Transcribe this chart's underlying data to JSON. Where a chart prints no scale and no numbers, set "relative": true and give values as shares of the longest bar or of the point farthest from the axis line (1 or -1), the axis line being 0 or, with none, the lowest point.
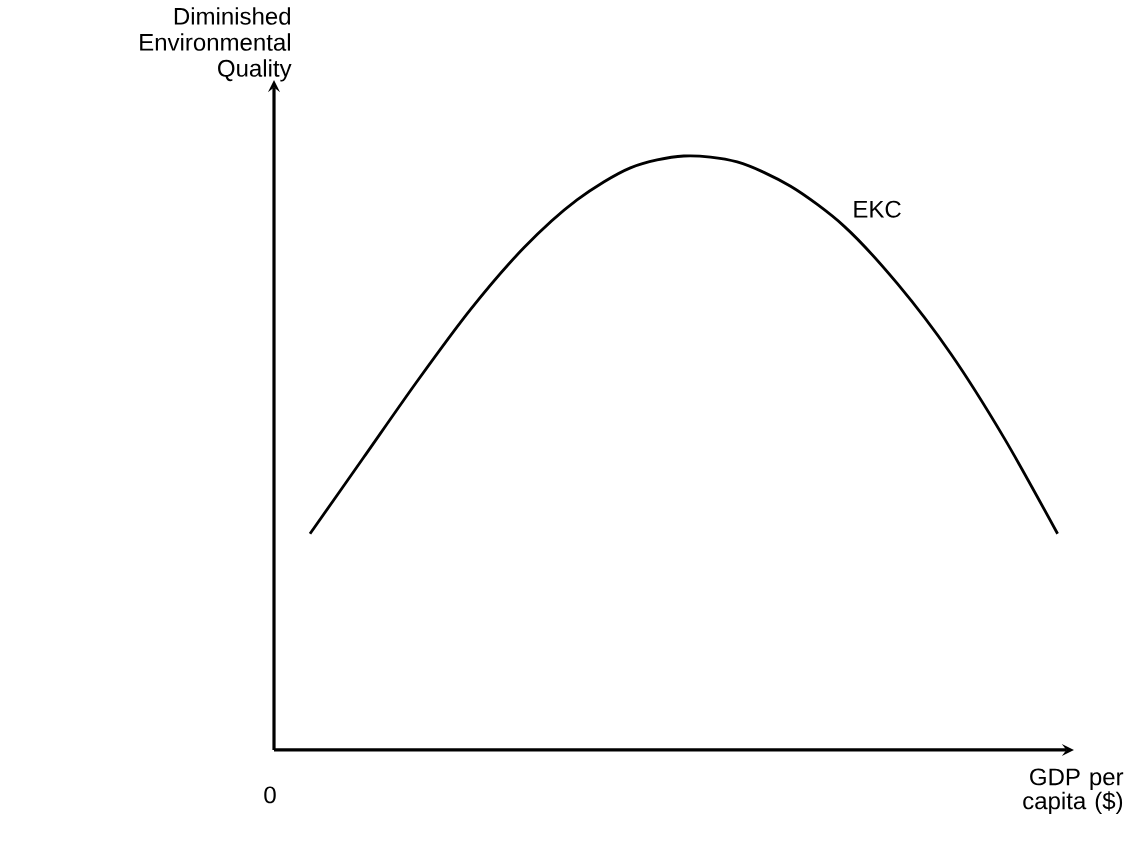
{
  "chart_data": {
    "type": "line",
    "relative": true,
    "ylabel": "Diminished Environmental Quality",
    "xlabel": "GDP per capita ($)",
    "annotations": [
      "0"
    ],
    "categories": [
      null,
      null,
      null,
      null,
      null,
      null,
      null,
      null,
      null,
      null,
      null,
      null,
      null,
      null,
      null
    ],
    "series": [
      {
        "name": "EKC",
        "color": "#000000",
        "values": [
          0.364,
          0.492,
          0.62,
          0.741,
          0.845,
          0.926,
          0.98,
          1.0,
          0.99,
          0.949,
          0.882,
          0.785,
          0.667,
          0.525,
          0.364
        ]
      }
    ],
    "marker": "none",
    "line_style": "solid",
    "legend": false
  }
}
